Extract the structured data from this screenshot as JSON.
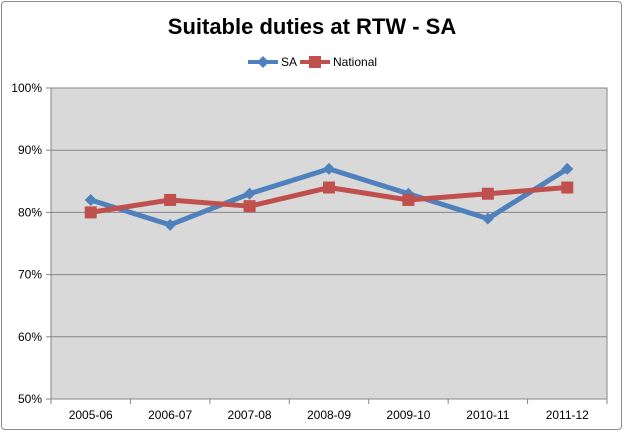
{
  "chart_data": {
    "type": "line",
    "title": "Suitable duties at RTW - SA",
    "categories": [
      "2005-06",
      "2006-07",
      "2007-08",
      "2008-09",
      "2009-10",
      "2010-11",
      "2011-12"
    ],
    "yticks": [
      "50%",
      "60%",
      "70%",
      "80%",
      "90%",
      "100%"
    ],
    "ylim": [
      50,
      100
    ],
    "grid": true,
    "legend_position": "top",
    "series": [
      {
        "name": "SA",
        "values": [
          82,
          78,
          83,
          87,
          83,
          79,
          87
        ],
        "color": "#4f81bd",
        "marker": "diamond"
      },
      {
        "name": "National",
        "values": [
          80,
          82,
          81,
          84,
          82,
          83,
          84
        ],
        "color": "#c0504d",
        "marker": "square"
      }
    ],
    "plot_background": "#d9d9d9"
  }
}
